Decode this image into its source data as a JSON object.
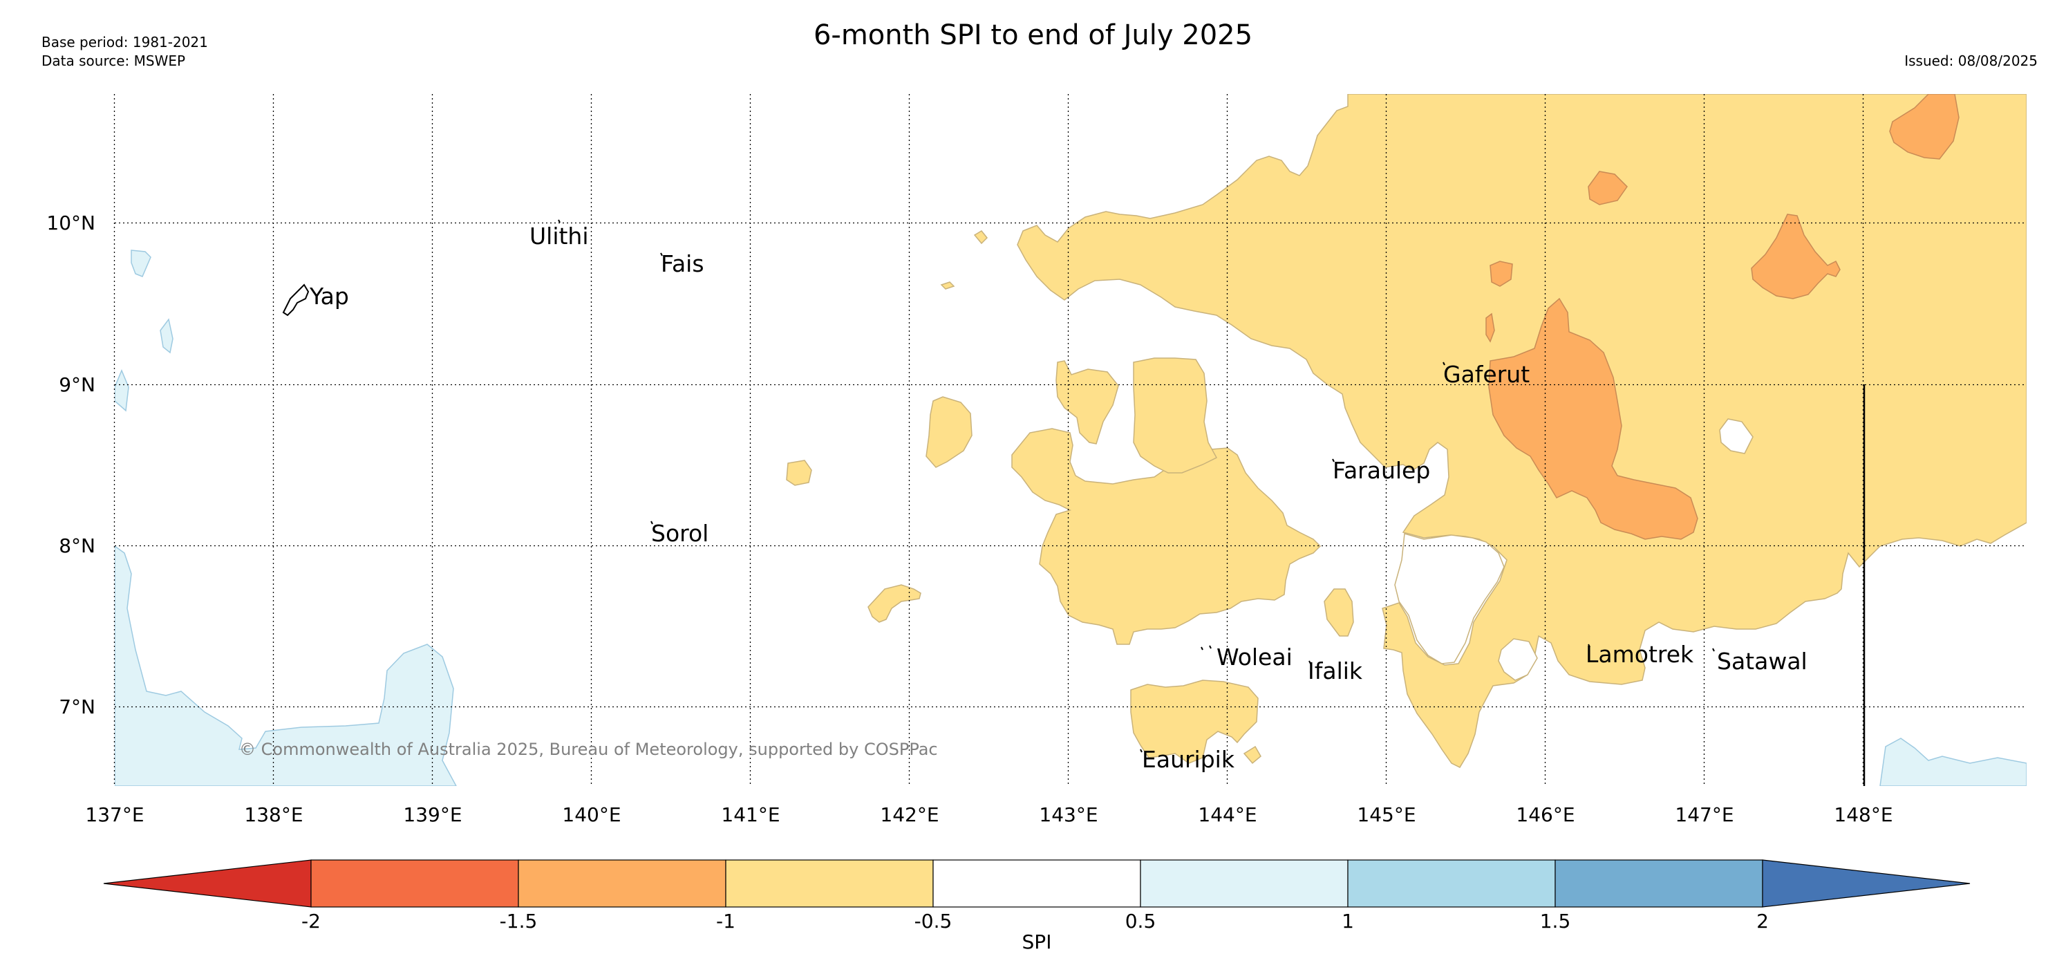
{
  "header": {
    "title": "6-month SPI to end of July 2025",
    "base_period": "Base period: 1981-2021",
    "data_source": "Data source: MSWEP",
    "issued": "Issued: 08/08/2025"
  },
  "map": {
    "lon_ticks": [
      "137°E",
      "138°E",
      "139°E",
      "140°E",
      "141°E",
      "142°E",
      "143°E",
      "144°E",
      "145°E",
      "146°E",
      "147°E",
      "148°E"
    ],
    "lat_ticks": [
      "10°N",
      "9°N",
      "8°N",
      "7°N"
    ],
    "places": [
      {
        "name": "Yap"
      },
      {
        "name": "Ulithi"
      },
      {
        "name": "Fais"
      },
      {
        "name": "Sorol"
      },
      {
        "name": "Gaferut"
      },
      {
        "name": "Faraulep"
      },
      {
        "name": "Woleai"
      },
      {
        "name": "Ifalik"
      },
      {
        "name": "Lamotrek"
      },
      {
        "name": "Satawal"
      },
      {
        "name": "Eauripik"
      }
    ],
    "copyright": "© Commonwealth of Australia 2025, Bureau of Meteorology, supported by COSPPac"
  },
  "colorbar": {
    "label": "SPI",
    "ticks": [
      "-2",
      "-1.5",
      "-1",
      "-0.5",
      "0.5",
      "1",
      "1.5",
      "2"
    ],
    "colors": [
      "#d73027",
      "#f46d43",
      "#fdae61",
      "#fee08b",
      "#ffffff",
      "#e0f3f8",
      "#abd9e9",
      "#74add1",
      "#4575b4"
    ]
  }
}
